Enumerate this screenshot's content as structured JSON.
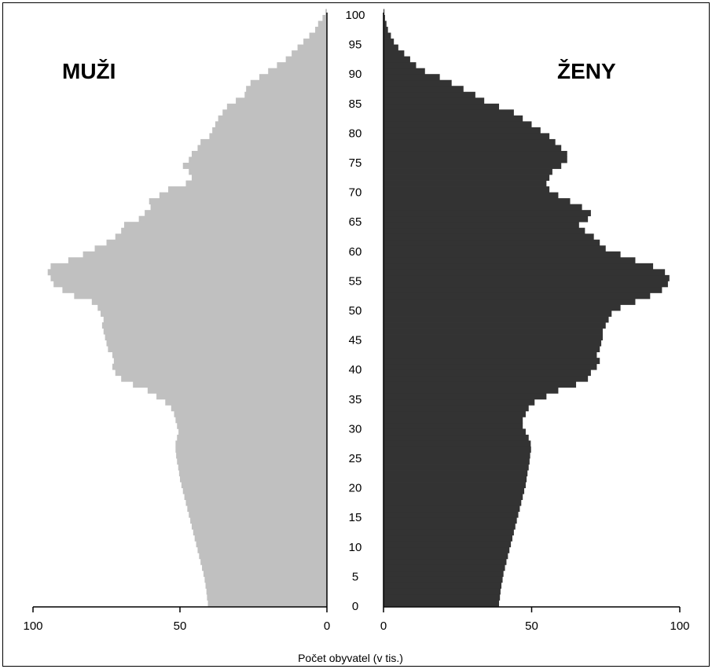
{
  "chart_data": {
    "type": "bar",
    "subtype": "population-pyramid",
    "xlabel": "Počet obyvatel (v tis.)",
    "ages": [
      0,
      1,
      2,
      3,
      4,
      5,
      6,
      7,
      8,
      9,
      10,
      11,
      12,
      13,
      14,
      15,
      16,
      17,
      18,
      19,
      20,
      21,
      22,
      23,
      24,
      25,
      26,
      27,
      28,
      29,
      30,
      31,
      32,
      33,
      34,
      35,
      36,
      37,
      38,
      39,
      40,
      41,
      42,
      43,
      44,
      45,
      46,
      47,
      48,
      49,
      50,
      51,
      52,
      53,
      54,
      55,
      56,
      57,
      58,
      59,
      60,
      61,
      62,
      63,
      64,
      65,
      66,
      67,
      68,
      69,
      70,
      71,
      72,
      73,
      74,
      75,
      76,
      77,
      78,
      79,
      80,
      81,
      82,
      83,
      84,
      85,
      86,
      87,
      88,
      89,
      90,
      91,
      92,
      93,
      94,
      95,
      96,
      97,
      98,
      99,
      100
    ],
    "age_ticks": [
      0,
      5,
      10,
      15,
      20,
      25,
      30,
      35,
      40,
      45,
      50,
      55,
      60,
      65,
      70,
      75,
      80,
      85,
      90,
      95,
      100
    ],
    "value_ticks": {
      "left": [
        "100",
        "50",
        "0"
      ],
      "right": [
        "0",
        "50",
        "100"
      ]
    },
    "xlim": [
      0,
      100
    ],
    "series": [
      {
        "name": "MUŽI",
        "side": "left",
        "color": "#c0c0c0",
        "values": [
          40.5,
          40.8,
          41,
          41.3,
          41.6,
          42,
          42.5,
          43,
          43.5,
          44,
          44.5,
          45,
          45.5,
          46,
          46.5,
          47,
          47.5,
          48,
          48.5,
          49,
          49.5,
          50,
          50.3,
          50.6,
          51,
          51.3,
          51.5,
          51.5,
          51,
          50.5,
          51,
          51.5,
          52,
          53,
          55,
          58,
          61,
          66,
          70,
          72,
          73,
          72.5,
          73,
          74.5,
          75,
          75.5,
          76,
          76.5,
          76,
          77,
          78,
          80,
          86,
          90,
          93,
          94,
          95,
          94,
          88,
          83,
          79,
          75,
          72,
          70,
          69,
          64,
          62,
          60,
          60.5,
          57,
          54,
          48,
          46,
          47,
          49,
          47,
          46,
          44,
          43,
          40,
          39,
          38,
          37,
          35.5,
          34,
          31,
          28,
          27.5,
          26,
          23,
          20,
          17,
          14,
          12,
          10,
          8,
          6,
          4,
          3,
          1.5,
          0.5
        ]
      },
      {
        "name": "ŽENY",
        "side": "right",
        "color": "#333333",
        "values": [
          39,
          39.3,
          39.5,
          39.8,
          40.2,
          40.5,
          41,
          41.5,
          42,
          42.5,
          43,
          43.5,
          44,
          44.5,
          45,
          45.5,
          46,
          46.5,
          47,
          47.5,
          48,
          48.3,
          48.6,
          49,
          49.3,
          49.5,
          49.8,
          49.7,
          49,
          48,
          47,
          47,
          48,
          49,
          51,
          55,
          59,
          65,
          69,
          70,
          72,
          73,
          72,
          73,
          73.5,
          74,
          74,
          75,
          76,
          77,
          80,
          85,
          90,
          94,
          96,
          96.5,
          95,
          91,
          85,
          80,
          75,
          73,
          71,
          68,
          66,
          69,
          70,
          67,
          63,
          59,
          56,
          55,
          56,
          57,
          60,
          62,
          62,
          60,
          58,
          56,
          53,
          50,
          47,
          44,
          39,
          34,
          31,
          27,
          23,
          19,
          14,
          11,
          9,
          7,
          5,
          3.5,
          2.5,
          1.5,
          1,
          0.5,
          0.3
        ]
      }
    ]
  }
}
